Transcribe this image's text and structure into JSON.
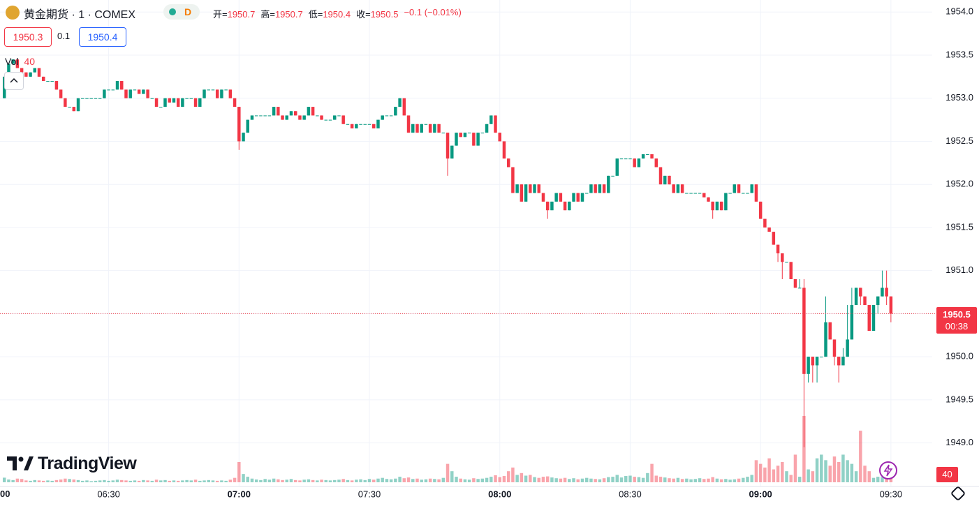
{
  "header": {
    "symbol": "黄金期货 · 1 · COMEX",
    "interval_badge": "D",
    "legend": [
      {
        "key": "开=",
        "value": "1950.7"
      },
      {
        "key": "高=",
        "value": "1950.7"
      },
      {
        "key": "低=",
        "value": "1950.4"
      },
      {
        "key": "收=",
        "value": "1950.5"
      }
    ],
    "change": "−0.1 (−0.01%)"
  },
  "quote": {
    "bid": "1950.3",
    "spread": "0.1",
    "ask": "1950.4"
  },
  "volume_legend": {
    "label": "Vol",
    "value": "40"
  },
  "price_badge": {
    "price": "1950.5",
    "countdown": "00:38"
  },
  "volume_badge": "40",
  "logo": "TradingView",
  "x_edge_label": "00",
  "chart_data": {
    "type": "candlestick",
    "up_color": "#089981",
    "down_color": "#f23645",
    "grid": true,
    "xlim": [
      365,
      579.5
    ],
    "ylim": [
      1948.47,
      1954.14
    ],
    "xticks": [
      {
        "value": 390,
        "label": "06:30"
      },
      {
        "value": 420,
        "label": "07:00"
      },
      {
        "value": 450,
        "label": "07:30"
      },
      {
        "value": 480,
        "label": "08:00"
      },
      {
        "value": 510,
        "label": "08:30"
      },
      {
        "value": 540,
        "label": "09:00"
      },
      {
        "value": 570,
        "label": "09:30"
      }
    ],
    "yticks": [
      {
        "value": 1949,
        "label": "1949.0"
      },
      {
        "value": 1949.5,
        "label": "1949.5"
      },
      {
        "value": 1950,
        "label": "1950.0"
      },
      {
        "value": 1950.5,
        "label": "1950.5"
      },
      {
        "value": 1951,
        "label": "1951.0"
      },
      {
        "value": 1951.5,
        "label": "1951.5"
      },
      {
        "value": 1952,
        "label": "1952.0"
      },
      {
        "value": 1952.5,
        "label": "1952.5"
      },
      {
        "value": 1953,
        "label": "1953.0"
      },
      {
        "value": 1953.5,
        "label": "1953.5"
      },
      {
        "value": 1954,
        "label": "1954.0"
      }
    ],
    "x": [
      366,
      367,
      368,
      369,
      370,
      371,
      372,
      373,
      374,
      375,
      376,
      377,
      378,
      379,
      380,
      381,
      382,
      383,
      384,
      385,
      386,
      387,
      388,
      389,
      390,
      391,
      392,
      393,
      394,
      395,
      396,
      397,
      398,
      399,
      400,
      401,
      402,
      403,
      404,
      405,
      406,
      407,
      408,
      409,
      410,
      411,
      412,
      413,
      414,
      415,
      416,
      417,
      418,
      419,
      420,
      421,
      422,
      423,
      424,
      425,
      426,
      427,
      428,
      429,
      430,
      431,
      432,
      433,
      434,
      435,
      436,
      437,
      438,
      439,
      440,
      441,
      442,
      443,
      444,
      445,
      446,
      447,
      448,
      449,
      450,
      451,
      452,
      453,
      454,
      455,
      456,
      457,
      458,
      459,
      460,
      461,
      462,
      463,
      464,
      465,
      466,
      467,
      468,
      469,
      470,
      471,
      472,
      473,
      474,
      475,
      476,
      477,
      478,
      479,
      480,
      481,
      482,
      483,
      484,
      485,
      486,
      487,
      488,
      489,
      490,
      491,
      492,
      493,
      494,
      495,
      496,
      497,
      498,
      499,
      500,
      501,
      502,
      503,
      504,
      505,
      506,
      507,
      508,
      509,
      510,
      511,
      512,
      513,
      514,
      515,
      516,
      517,
      518,
      519,
      520,
      521,
      522,
      523,
      524,
      525,
      526,
      527,
      528,
      529,
      530,
      531,
      532,
      533,
      534,
      535,
      536,
      537,
      538,
      539,
      540,
      541,
      542,
      543,
      544,
      545,
      546,
      547,
      548,
      549,
      550,
      551,
      552,
      553,
      554,
      555,
      556,
      557,
      558,
      559,
      560,
      561,
      562,
      563,
      564,
      565,
      566,
      567,
      568,
      569,
      570
    ],
    "open": [
      1953.0,
      1953.25,
      1953.4,
      1953.45,
      1953.35,
      1953.3,
      1953.25,
      1953.3,
      1953.35,
      1953.25,
      1953.2,
      1953.2,
      1953.2,
      1953.1,
      1953.0,
      1952.9,
      1952.9,
      1952.85,
      1953.0,
      1953.0,
      1953.0,
      1953.0,
      1953.0,
      1953.0,
      1953.1,
      1953.1,
      1953.1,
      1953.2,
      1953.1,
      1953.0,
      1953.1,
      1953.1,
      1953.05,
      1953.1,
      1953.0,
      1953.0,
      1952.9,
      1952.9,
      1953.0,
      1952.95,
      1953.0,
      1952.9,
      1953.0,
      1953.0,
      1953.0,
      1952.9,
      1953.0,
      1953.1,
      1953.1,
      1953.1,
      1953.0,
      1953.1,
      1953.1,
      1953.0,
      1952.9,
      1952.5,
      1952.6,
      1952.75,
      1952.8,
      1952.8,
      1952.8,
      1952.8,
      1952.8,
      1952.9,
      1952.8,
      1952.75,
      1952.8,
      1952.85,
      1952.8,
      1952.75,
      1952.8,
      1952.9,
      1952.8,
      1952.8,
      1952.75,
      1952.75,
      1952.75,
      1952.8,
      1952.8,
      1952.7,
      1952.7,
      1952.65,
      1952.7,
      1952.7,
      1952.7,
      1952.7,
      1952.65,
      1952.75,
      1952.8,
      1952.8,
      1952.8,
      1952.9,
      1953.0,
      1952.8,
      1952.6,
      1952.7,
      1952.6,
      1952.7,
      1952.7,
      1952.6,
      1952.7,
      1952.6,
      1952.6,
      1952.3,
      1952.45,
      1952.6,
      1952.55,
      1952.6,
      1952.6,
      1952.45,
      1952.6,
      1952.6,
      1952.7,
      1952.8,
      1952.6,
      1952.5,
      1952.3,
      1952.2,
      1951.9,
      1952.0,
      1951.8,
      1952.0,
      1951.9,
      1952.0,
      1951.9,
      1951.8,
      1951.7,
      1951.8,
      1951.9,
      1951.8,
      1951.7,
      1951.8,
      1951.9,
      1951.8,
      1951.9,
      1951.9,
      1952.0,
      1951.9,
      1952.0,
      1951.9,
      1952.1,
      1952.1,
      1952.3,
      1952.3,
      1952.3,
      1952.3,
      1952.2,
      1952.3,
      1952.35,
      1952.35,
      1952.3,
      1952.2,
      1952.0,
      1952.1,
      1952.0,
      1951.9,
      1952.0,
      1951.9,
      1951.9,
      1951.9,
      1951.9,
      1951.9,
      1951.85,
      1951.8,
      1951.7,
      1951.8,
      1951.7,
      1951.9,
      1951.9,
      1952.0,
      1951.9,
      1951.9,
      1951.9,
      1952.0,
      1951.8,
      1951.6,
      1951.5,
      1951.45,
      1951.3,
      1951.2,
      1951.1,
      1951.1,
      1950.9,
      1950.8,
      1950.8,
      1949.8,
      1950.0,
      1949.9,
      1950.0,
      1950.0,
      1950.4,
      1950.2,
      1950.0,
      1949.9,
      1950.0,
      1950.2,
      1950.6,
      1950.8,
      1950.7,
      1950.6,
      1950.3,
      1950.6,
      1950.7,
      1950.8,
      1950.7
    ],
    "high": [
      1953.25,
      1953.4,
      1953.45,
      1953.45,
      1953.35,
      1953.3,
      1953.3,
      1953.35,
      1953.35,
      1953.25,
      1953.2,
      1953.2,
      1953.2,
      1953.1,
      1953.0,
      1952.9,
      1952.9,
      1953.0,
      1953.0,
      1953.0,
      1953.0,
      1953.0,
      1953.0,
      1953.1,
      1953.1,
      1953.1,
      1953.2,
      1953.2,
      1953.1,
      1953.1,
      1953.1,
      1953.1,
      1953.1,
      1953.1,
      1953.0,
      1953.0,
      1952.9,
      1953.0,
      1953.0,
      1953.0,
      1953.0,
      1953.0,
      1953.0,
      1953.0,
      1953.0,
      1953.0,
      1953.1,
      1953.1,
      1953.1,
      1953.1,
      1953.1,
      1953.1,
      1953.1,
      1953.0,
      1952.9,
      1952.6,
      1952.75,
      1952.8,
      1952.8,
      1952.8,
      1952.8,
      1952.8,
      1952.9,
      1952.9,
      1952.8,
      1952.8,
      1952.85,
      1952.85,
      1952.8,
      1952.8,
      1952.9,
      1952.9,
      1952.8,
      1952.8,
      1952.75,
      1952.75,
      1952.8,
      1952.8,
      1952.8,
      1952.7,
      1952.7,
      1952.7,
      1952.7,
      1952.7,
      1952.7,
      1952.7,
      1952.75,
      1952.8,
      1952.8,
      1952.8,
      1952.9,
      1953.0,
      1953.0,
      1952.8,
      1952.7,
      1952.7,
      1952.7,
      1952.7,
      1952.7,
      1952.7,
      1952.7,
      1952.6,
      1952.6,
      1952.45,
      1952.6,
      1952.6,
      1952.6,
      1952.6,
      1952.6,
      1952.6,
      1952.6,
      1952.7,
      1952.8,
      1952.8,
      1952.6,
      1952.5,
      1952.3,
      1952.2,
      1952.0,
      1952.0,
      1952.0,
      1952.0,
      1952.0,
      1952.0,
      1951.9,
      1951.8,
      1951.8,
      1951.9,
      1951.9,
      1951.8,
      1951.8,
      1951.9,
      1951.9,
      1951.9,
      1951.9,
      1952.0,
      1952.0,
      1952.0,
      1952.0,
      1952.1,
      1952.1,
      1952.3,
      1952.3,
      1952.3,
      1952.3,
      1952.3,
      1952.3,
      1952.35,
      1952.35,
      1952.35,
      1952.3,
      1952.2,
      1952.1,
      1952.1,
      1952.0,
      1952.0,
      1952.0,
      1951.9,
      1951.9,
      1951.9,
      1951.9,
      1951.9,
      1951.85,
      1951.8,
      1951.8,
      1951.8,
      1951.9,
      1951.9,
      1952.0,
      1952.0,
      1951.9,
      1951.9,
      1952.0,
      1952.0,
      1951.8,
      1951.6,
      1951.5,
      1951.45,
      1951.3,
      1951.2,
      1951.1,
      1951.1,
      1950.9,
      1950.9,
      1950.9,
      1950.0,
      1950.0,
      1950.0,
      1950.0,
      1950.7,
      1950.4,
      1950.2,
      1950.0,
      1950.1,
      1950.6,
      1950.8,
      1950.8,
      1950.8,
      1950.7,
      1950.6,
      1950.6,
      1950.7,
      1951.0,
      1951.0,
      1950.7
    ],
    "low": [
      1953.0,
      1953.25,
      1953.4,
      1953.35,
      1953.3,
      1953.25,
      1953.25,
      1953.3,
      1953.25,
      1953.2,
      1953.2,
      1953.2,
      1953.1,
      1953.0,
      1952.9,
      1952.9,
      1952.85,
      1952.85,
      1953.0,
      1953.0,
      1953.0,
      1953.0,
      1953.0,
      1953.0,
      1953.1,
      1953.1,
      1953.1,
      1953.1,
      1953.0,
      1953.0,
      1953.1,
      1953.05,
      1953.05,
      1953.0,
      1953.0,
      1952.9,
      1952.9,
      1952.9,
      1952.95,
      1952.95,
      1952.9,
      1952.9,
      1953.0,
      1953.0,
      1952.9,
      1952.9,
      1953.0,
      1953.1,
      1953.1,
      1953.0,
      1953.0,
      1953.1,
      1953.0,
      1952.9,
      1952.4,
      1952.5,
      1952.6,
      1952.75,
      1952.8,
      1952.8,
      1952.8,
      1952.8,
      1952.8,
      1952.8,
      1952.75,
      1952.75,
      1952.8,
      1952.8,
      1952.75,
      1952.75,
      1952.8,
      1952.8,
      1952.8,
      1952.75,
      1952.75,
      1952.75,
      1952.75,
      1952.8,
      1952.7,
      1952.7,
      1952.65,
      1952.65,
      1952.7,
      1952.7,
      1952.7,
      1952.65,
      1952.65,
      1952.75,
      1952.8,
      1952.8,
      1952.8,
      1952.9,
      1952.8,
      1952.6,
      1952.6,
      1952.6,
      1952.6,
      1952.7,
      1952.6,
      1952.6,
      1952.6,
      1952.6,
      1952.1,
      1952.3,
      1952.45,
      1952.55,
      1952.55,
      1952.6,
      1952.45,
      1952.45,
      1952.6,
      1952.6,
      1952.7,
      1952.6,
      1952.5,
      1952.3,
      1952.2,
      1951.9,
      1951.9,
      1951.8,
      1951.8,
      1951.9,
      1951.9,
      1951.9,
      1951.8,
      1951.6,
      1951.7,
      1951.8,
      1951.8,
      1951.7,
      1951.7,
      1951.8,
      1951.8,
      1951.8,
      1951.9,
      1951.9,
      1951.9,
      1951.9,
      1951.9,
      1951.9,
      1952.1,
      1952.1,
      1952.3,
      1952.3,
      1952.3,
      1952.2,
      1952.2,
      1952.3,
      1952.35,
      1952.3,
      1952.2,
      1952.0,
      1952.0,
      1952.0,
      1951.9,
      1951.9,
      1951.9,
      1951.9,
      1951.9,
      1951.9,
      1951.9,
      1951.85,
      1951.8,
      1951.6,
      1951.7,
      1951.7,
      1951.7,
      1951.9,
      1951.9,
      1951.9,
      1951.9,
      1951.9,
      1951.9,
      1951.8,
      1951.6,
      1951.5,
      1951.45,
      1951.3,
      1951.1,
      1950.9,
      1951.1,
      1950.9,
      1950.8,
      1950.8,
      1948.95,
      1949.7,
      1949.7,
      1949.7,
      1950.0,
      1950.0,
      1950.2,
      1949.9,
      1949.7,
      1949.9,
      1950.0,
      1950.2,
      1950.6,
      1950.6,
      1950.6,
      1950.3,
      1950.3,
      1950.5,
      1950.7,
      1950.6,
      1950.4
    ],
    "close": [
      1953.25,
      1953.4,
      1953.45,
      1953.35,
      1953.3,
      1953.25,
      1953.3,
      1953.35,
      1953.25,
      1953.2,
      1953.2,
      1953.2,
      1953.1,
      1953.0,
      1952.9,
      1952.9,
      1952.85,
      1953.0,
      1953.0,
      1953.0,
      1953.0,
      1953.0,
      1953.0,
      1953.1,
      1953.1,
      1953.1,
      1953.2,
      1953.1,
      1953.0,
      1953.1,
      1953.1,
      1953.05,
      1953.1,
      1953.0,
      1953.0,
      1952.9,
      1952.9,
      1953.0,
      1952.95,
      1953.0,
      1952.9,
      1953.0,
      1953.0,
      1953.0,
      1952.9,
      1953.0,
      1953.1,
      1953.1,
      1953.1,
      1953.0,
      1953.1,
      1953.1,
      1953.0,
      1952.9,
      1952.5,
      1952.6,
      1952.75,
      1952.8,
      1952.8,
      1952.8,
      1952.8,
      1952.8,
      1952.9,
      1952.8,
      1952.75,
      1952.8,
      1952.85,
      1952.8,
      1952.75,
      1952.8,
      1952.9,
      1952.8,
      1952.8,
      1952.75,
      1952.75,
      1952.75,
      1952.8,
      1952.8,
      1952.7,
      1952.7,
      1952.65,
      1952.7,
      1952.7,
      1952.7,
      1952.7,
      1952.65,
      1952.75,
      1952.8,
      1952.8,
      1952.8,
      1952.9,
      1953.0,
      1952.8,
      1952.6,
      1952.7,
      1952.6,
      1952.7,
      1952.7,
      1952.6,
      1952.7,
      1952.6,
      1952.6,
      1952.3,
      1952.45,
      1952.6,
      1952.55,
      1952.6,
      1952.6,
      1952.45,
      1952.6,
      1952.6,
      1952.7,
      1952.8,
      1952.6,
      1952.5,
      1952.3,
      1952.2,
      1951.9,
      1952.0,
      1951.8,
      1952.0,
      1951.9,
      1952.0,
      1951.9,
      1951.8,
      1951.7,
      1951.8,
      1951.9,
      1951.8,
      1951.7,
      1951.8,
      1951.9,
      1951.8,
      1951.9,
      1951.9,
      1952.0,
      1951.9,
      1952.0,
      1951.9,
      1952.1,
      1952.1,
      1952.3,
      1952.3,
      1952.3,
      1952.3,
      1952.2,
      1952.3,
      1952.35,
      1952.35,
      1952.3,
      1952.2,
      1952.0,
      1952.1,
      1952.0,
      1951.9,
      1952.0,
      1951.9,
      1951.9,
      1951.9,
      1951.9,
      1951.9,
      1951.85,
      1951.8,
      1951.7,
      1951.8,
      1951.7,
      1951.9,
      1951.9,
      1952.0,
      1951.9,
      1951.9,
      1951.9,
      1952.0,
      1951.8,
      1951.6,
      1951.5,
      1951.45,
      1951.3,
      1951.2,
      1951.1,
      1951.1,
      1950.9,
      1950.8,
      1950.8,
      1949.8,
      1950.0,
      1949.9,
      1950.0,
      1950.0,
      1950.4,
      1950.2,
      1950.0,
      1949.9,
      1950.0,
      1950.2,
      1950.6,
      1950.8,
      1950.7,
      1950.6,
      1950.3,
      1950.6,
      1950.7,
      1950.8,
      1950.7,
      1950.5
    ],
    "volume": [
      25,
      15,
      12,
      20,
      18,
      10,
      8,
      12,
      10,
      8,
      10,
      8,
      12,
      15,
      20,
      18,
      15,
      12,
      8,
      10,
      6,
      8,
      10,
      12,
      8,
      10,
      14,
      12,
      10,
      8,
      10,
      8,
      12,
      10,
      8,
      14,
      10,
      12,
      8,
      10,
      8,
      10,
      12,
      10,
      14,
      8,
      10,
      12,
      10,
      8,
      10,
      8,
      14,
      24,
      110,
      45,
      30,
      20,
      15,
      12,
      18,
      14,
      20,
      16,
      12,
      14,
      18,
      12,
      10,
      14,
      16,
      12,
      10,
      14,
      12,
      10,
      12,
      14,
      18,
      12,
      10,
      14,
      16,
      12,
      18,
      14,
      20,
      24,
      18,
      16,
      20,
      30,
      22,
      26,
      18,
      20,
      14,
      16,
      20,
      18,
      16,
      24,
      100,
      60,
      30,
      20,
      16,
      14,
      22,
      18,
      20,
      24,
      30,
      38,
      28,
      34,
      60,
      80,
      40,
      50,
      36,
      40,
      28,
      24,
      30,
      32,
      26,
      22,
      20,
      24,
      18,
      22,
      16,
      20,
      24,
      20,
      18,
      16,
      22,
      28,
      30,
      40,
      26,
      34,
      36,
      30,
      28,
      24,
      50,
      100,
      36,
      30,
      26,
      22,
      20,
      24,
      18,
      20,
      16,
      18,
      22,
      18,
      20,
      28,
      20,
      16,
      18,
      14,
      16,
      20,
      24,
      30,
      40,
      120,
      100,
      80,
      130,
      70,
      90,
      110,
      60,
      40,
      150,
      30,
      360,
      70,
      60,
      130,
      150,
      120,
      90,
      140,
      110,
      150,
      120,
      100,
      60,
      280,
      90,
      60,
      24,
      30,
      28,
      34,
      40
    ]
  }
}
